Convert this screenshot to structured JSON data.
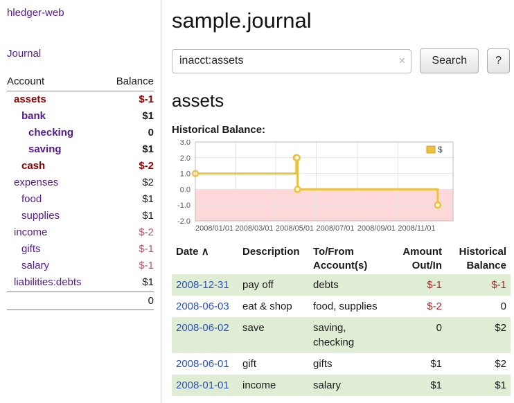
{
  "colors": {
    "link_purple": "#551a8b",
    "date_blue": "#2a52be",
    "negative_strong": "#8b0000",
    "negative_soft": "#bb5566",
    "negative": "#a52a2a",
    "row_green": "#dfedd5",
    "chart_line": "#edc240",
    "chart_negative_region": "#ffd9d9"
  },
  "sidebar": {
    "app_title": "hledger-web",
    "nav": {
      "journal": "Journal"
    },
    "accounts": {
      "headers": {
        "account": "Account",
        "balance": "Balance"
      },
      "rows": [
        {
          "name": "assets",
          "balance": "$-1",
          "depth": 1,
          "bold": true,
          "name_negative": true,
          "balance_negative": "strong"
        },
        {
          "name": "bank",
          "balance": "$1",
          "depth": 2,
          "bold": true,
          "name_negative": false,
          "balance_negative": null
        },
        {
          "name": "checking",
          "balance": "0",
          "depth": 3,
          "bold": true,
          "name_negative": false,
          "balance_negative": null
        },
        {
          "name": "saving",
          "balance": "$1",
          "depth": 3,
          "bold": true,
          "name_negative": false,
          "balance_negative": null
        },
        {
          "name": "cash",
          "balance": "$-2",
          "depth": 2,
          "bold": true,
          "name_negative": true,
          "balance_negative": "strong"
        },
        {
          "name": "expenses",
          "balance": "$2",
          "depth": 1,
          "bold": false,
          "name_negative": false,
          "balance_negative": null
        },
        {
          "name": "food",
          "balance": "$1",
          "depth": 2,
          "bold": false,
          "name_negative": false,
          "balance_negative": null
        },
        {
          "name": "supplies",
          "balance": "$1",
          "depth": 2,
          "bold": false,
          "name_negative": false,
          "balance_negative": null
        },
        {
          "name": "income",
          "balance": "$-2",
          "depth": 1,
          "bold": false,
          "name_negative": false,
          "balance_negative": "soft"
        },
        {
          "name": "gifts",
          "balance": "$-1",
          "depth": 2,
          "bold": false,
          "name_negative": false,
          "balance_negative": "soft"
        },
        {
          "name": "salary",
          "balance": "$-1",
          "depth": 2,
          "bold": false,
          "name_negative": false,
          "balance_negative": "soft"
        },
        {
          "name": "liabilities:debts",
          "balance": "$1",
          "depth": 1,
          "bold": false,
          "name_negative": false,
          "balance_negative": null
        }
      ],
      "total": "0"
    }
  },
  "main": {
    "title": "sample.journal",
    "search": {
      "value": "inacct:assets",
      "clear_icon": "×",
      "search_button": "Search",
      "help_button": "?"
    },
    "account_heading": "assets",
    "chart_heading": "Historical Balance:"
  },
  "chart_data": {
    "type": "line",
    "step": true,
    "title": "Historical Balance:",
    "series": [
      {
        "name": "$",
        "points": [
          {
            "date": "2008-01-01",
            "value": 1
          },
          {
            "date": "2008-06-01",
            "value": 2
          },
          {
            "date": "2008-06-02",
            "value": 2
          },
          {
            "date": "2008-06-03",
            "value": 0
          },
          {
            "date": "2008-12-31",
            "value": -1
          }
        ]
      }
    ],
    "ylim": [
      -2,
      3
    ],
    "yticks": [
      "3.0",
      "2.0",
      "1.0",
      "0.0",
      "-1.0",
      "-2.0"
    ],
    "xticks": [
      "2008/01/01",
      "2008/03/01",
      "2008/05/01",
      "2008/07/01",
      "2008/09/01",
      "2008/11/01"
    ],
    "x_domain_days": [
      0,
      388
    ],
    "legend": {
      "label": "$",
      "position": "top-right"
    },
    "grid": true
  },
  "register": {
    "headers": {
      "date": "Date",
      "sort_indicator": "∧",
      "description": "Description",
      "accounts": "To/From Account(s)",
      "amount": "Amount Out/In",
      "balance": "Historical Balance"
    },
    "rows": [
      {
        "date": "2008-12-31",
        "description": "pay off",
        "accounts": "debts",
        "amount": "$-1",
        "amount_negative": true,
        "balance": "$-1",
        "balance_negative": true
      },
      {
        "date": "2008-06-03",
        "description": "eat & shop",
        "accounts": "food, supplies",
        "amount": "$-2",
        "amount_negative": true,
        "balance": "0",
        "balance_negative": false
      },
      {
        "date": "2008-06-02",
        "description": "save",
        "accounts": "saving, checking",
        "amount": "0",
        "amount_negative": false,
        "balance": "$2",
        "balance_negative": false
      },
      {
        "date": "2008-06-01",
        "description": "gift",
        "accounts": "gifts",
        "amount": "$1",
        "amount_negative": false,
        "balance": "$2",
        "balance_negative": false
      },
      {
        "date": "2008-01-01",
        "description": "income",
        "accounts": "salary",
        "amount": "$1",
        "amount_negative": false,
        "balance": "$1",
        "balance_negative": false
      }
    ]
  }
}
